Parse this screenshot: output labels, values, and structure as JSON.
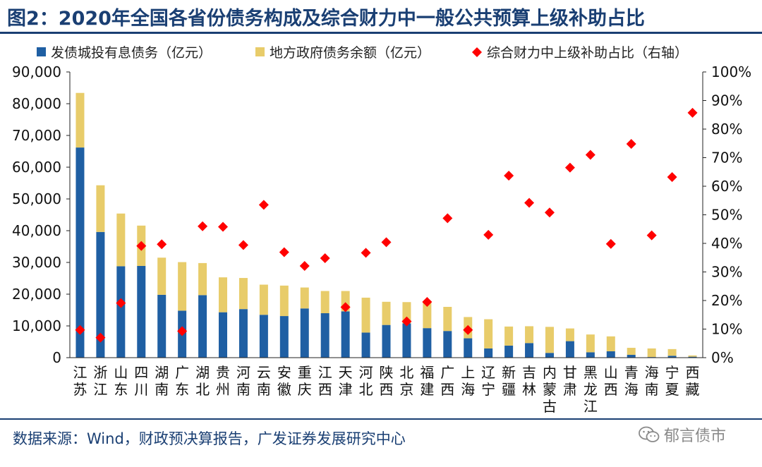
{
  "title": "图2：2020年全国各省份债务构成及综合财力中一般公共预算上级补助占比",
  "source": "数据来源：Wind，财政预决算报告，广发证券发展研究中心",
  "watermark": "郁言债市",
  "colors": {
    "bar1": "#1f5fa3",
    "bar2": "#e8cc6a",
    "marker": "#ff0000",
    "accent": "#1a3f73"
  },
  "chart_data": {
    "type": "bar",
    "stacked": true,
    "categories": [
      "江苏",
      "浙江",
      "山东",
      "四川",
      "湖南",
      "广东",
      "湖北",
      "贵州",
      "河南",
      "云南",
      "安徽",
      "重庆",
      "江西",
      "天津",
      "河北",
      "陕西",
      "北京",
      "福建",
      "广西",
      "上海",
      "辽宁",
      "新疆",
      "吉林",
      "内蒙古",
      "甘肃",
      "黑龙江",
      "山西",
      "青海",
      "海南",
      "宁夏",
      "西藏"
    ],
    "series": [
      {
        "name": "发债城投有息债务（亿元）",
        "type": "bar",
        "axis": "left",
        "values": [
          66200,
          39600,
          28800,
          28900,
          19800,
          14800,
          19700,
          14300,
          15300,
          13500,
          13100,
          15500,
          14000,
          14600,
          7900,
          10300,
          10800,
          9300,
          8400,
          6100,
          2900,
          3800,
          4600,
          1500,
          5200,
          1700,
          2000,
          900,
          200,
          600,
          300
        ]
      },
      {
        "name": "地方政府债务余额（亿元）",
        "type": "bar",
        "axis": "left",
        "values": [
          17200,
          14700,
          16600,
          12700,
          11700,
          15300,
          10100,
          11000,
          9800,
          9500,
          9600,
          6600,
          7000,
          6400,
          11000,
          7300,
          6700,
          8500,
          7600,
          6700,
          9200,
          6000,
          5300,
          8200,
          4000,
          5600,
          4700,
          2200,
          2700,
          2100,
          400
        ]
      },
      {
        "name": "综合财力中上级补助占比（右轴）",
        "type": "scatter",
        "axis": "right",
        "values": [
          0.097,
          0.07,
          0.191,
          0.391,
          0.397,
          0.093,
          0.46,
          0.458,
          0.394,
          0.535,
          0.369,
          0.321,
          0.348,
          0.177,
          0.367,
          0.404,
          0.127,
          0.195,
          0.488,
          0.097,
          0.43,
          0.637,
          0.542,
          0.508,
          0.665,
          0.71,
          0.398,
          0.748,
          0.428,
          0.632,
          0.857
        ]
      }
    ],
    "yleft": {
      "min": 0,
      "max": 90000,
      "step": 10000,
      "ticks": [
        "0",
        "10,000",
        "20,000",
        "30,000",
        "40,000",
        "50,000",
        "60,000",
        "70,000",
        "80,000",
        "90,000"
      ]
    },
    "yright": {
      "min": 0,
      "max": 1,
      "step": 0.1,
      "ticks": [
        "0%",
        "10%",
        "20%",
        "30%",
        "40%",
        "50%",
        "60%",
        "70%",
        "80%",
        "90%",
        "100%"
      ]
    },
    "grid": false,
    "legend": "top"
  }
}
